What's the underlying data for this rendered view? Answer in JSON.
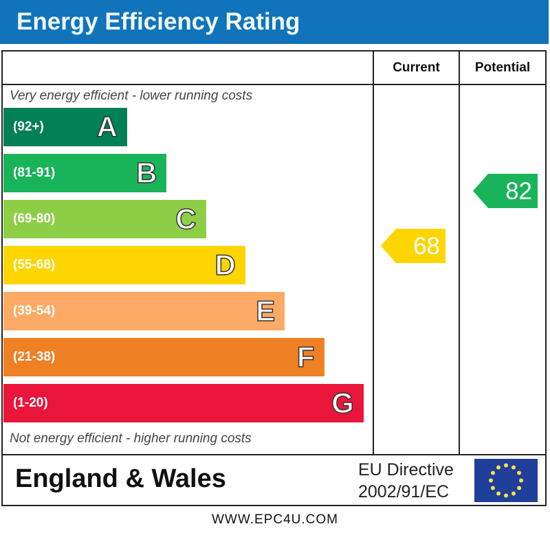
{
  "title": "Energy Efficiency Rating",
  "columns": {
    "current": "Current",
    "potential": "Potential"
  },
  "top_note": "Very energy efficient - lower running costs",
  "bottom_note": "Not energy efficient - higher running costs",
  "chart_data": {
    "type": "bar",
    "categories": [
      "A",
      "B",
      "C",
      "D",
      "E",
      "F",
      "G"
    ],
    "ranges": [
      "(92+)",
      "(81-91)",
      "(69-80)",
      "(55-68)",
      "(39-54)",
      "(21-38)",
      "(1-20)"
    ],
    "colors": [
      "#008054",
      "#19b459",
      "#8dce46",
      "#ffd500",
      "#fcaa65",
      "#ef8023",
      "#e9153b"
    ],
    "current": {
      "label": "Current",
      "value": 68,
      "band": "D",
      "color": "#ffd500"
    },
    "potential": {
      "label": "Potential",
      "value": 82,
      "band": "B",
      "color": "#19b459"
    }
  },
  "footer": {
    "region": "England & Wales",
    "directive_line1": "EU Directive",
    "directive_line2": "2002/91/EC",
    "flag_icon": "eu-flag-icon"
  },
  "url": "WWW.EPC4U.COM"
}
